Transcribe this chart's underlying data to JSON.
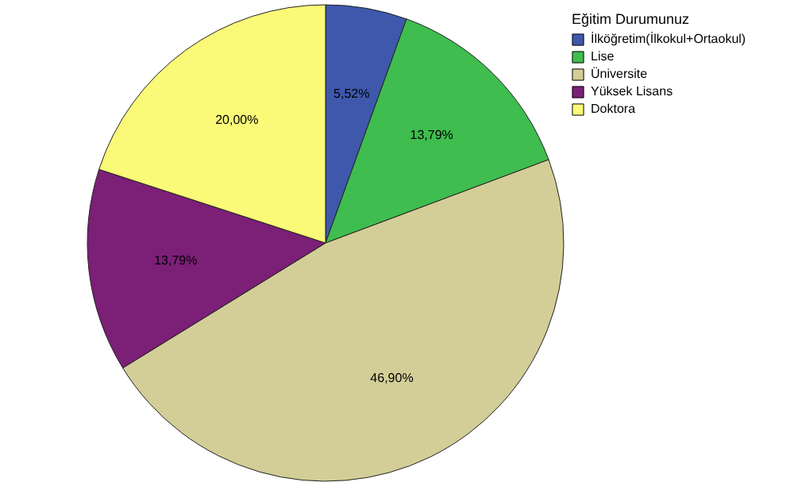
{
  "chart_data": {
    "type": "pie",
    "legend_title": "Eğitim Durumunuz",
    "legend": "top right",
    "categories": [
      "İlköğretim(İlkokul+Ortaokul)",
      "Lise",
      "Üniversite",
      "Yüksek Lisans",
      "Doktora"
    ],
    "values": [
      5.52,
      13.79,
      46.9,
      13.79,
      20.0
    ],
    "value_labels": [
      "5,52%",
      "13,79%",
      "46,90%",
      "13,79%",
      "20,00%"
    ],
    "colors": [
      "#3e58ac",
      "#3fbd4f",
      "#d3ce97",
      "#7b1f77",
      "#fbf978"
    ]
  }
}
